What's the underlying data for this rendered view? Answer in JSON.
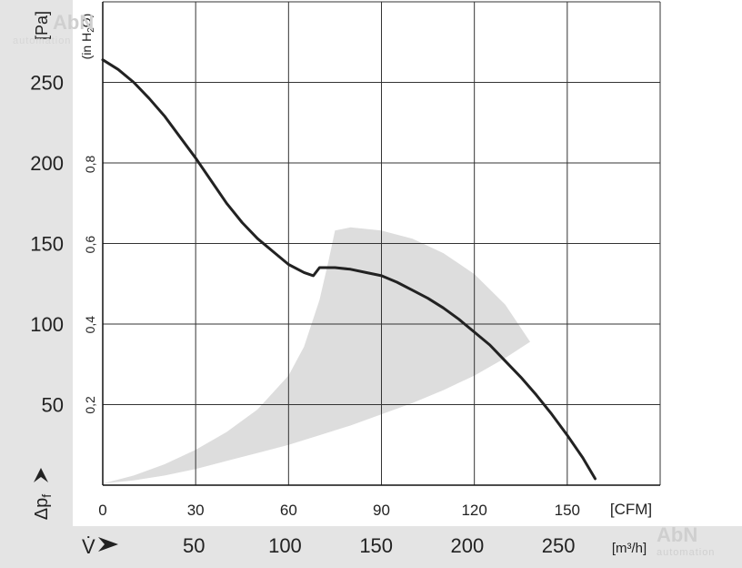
{
  "chart_data": {
    "type": "line",
    "y_left_unit": "[Pa]",
    "y_right_unit_prefix": "(in H",
    "y_right_unit_sub": "2",
    "y_right_unit_suffix": "O)",
    "y_axis_symbol": "Δp",
    "y_axis_symbol_sub": "f",
    "x_axis_symbol": "V̇",
    "x_top_unit": "[CFM]",
    "x_bottom_unit": "[m³/h]",
    "y_left_ticks": [
      50,
      100,
      150,
      200,
      250
    ],
    "y_right_ticks": [
      "0,2",
      "0,4",
      "0,6",
      "0,8"
    ],
    "y_right_tick_values_pa": [
      49.8,
      99.6,
      149.4,
      199.2
    ],
    "x_top_ticks": [
      0,
      30,
      60,
      90,
      120,
      150
    ],
    "x_bottom_ticks": [
      50,
      100,
      150,
      200,
      250
    ],
    "x_bottom_tick_values_cfm": [
      29.43,
      58.86,
      88.29,
      117.72,
      147.15
    ],
    "xlim_cfm": [
      0,
      180
    ],
    "ylim_pa": [
      0,
      300
    ],
    "grid": true,
    "series": [
      {
        "x": [
          0,
          5,
          10,
          15,
          20,
          25,
          30,
          35,
          40,
          45,
          50,
          55,
          60,
          65,
          68,
          70,
          75,
          80,
          85,
          90,
          95,
          100,
          105,
          110,
          115,
          120,
          125,
          130,
          135,
          140,
          145,
          150,
          155,
          159
        ],
        "y": [
          264,
          258,
          250,
          240,
          229,
          216,
          203,
          189,
          175,
          163,
          153,
          145,
          137,
          132,
          130,
          135,
          135,
          134,
          132,
          130,
          126,
          121,
          116,
          110,
          103,
          95,
          87,
          77,
          67,
          56,
          44,
          31,
          17,
          4
        ]
      }
    ],
    "operating_region": {
      "upper_x": [
        0,
        10,
        20,
        30,
        40,
        50,
        60,
        65,
        70,
        73,
        75,
        80,
        90,
        100,
        110,
        120,
        130,
        138
      ],
      "upper_y": [
        1,
        6,
        13,
        22,
        33,
        47,
        68,
        86,
        115,
        140,
        158,
        160,
        158,
        153,
        144,
        131,
        112,
        89
      ],
      "lower_x": [
        138,
        130,
        120,
        110,
        100,
        90,
        80,
        70,
        60,
        50,
        40,
        30,
        20,
        10,
        0
      ],
      "lower_y": [
        89,
        79,
        68,
        59,
        51,
        44,
        37,
        31,
        25,
        20,
        15,
        10,
        6,
        3,
        1
      ],
      "color": "#dddddd"
    },
    "colors": {
      "curve": "#222222",
      "grid": "#333333",
      "band": "#e4e4e4",
      "text": "#222222"
    }
  },
  "watermark": {
    "brand": "AbN",
    "tagline": "automation"
  }
}
